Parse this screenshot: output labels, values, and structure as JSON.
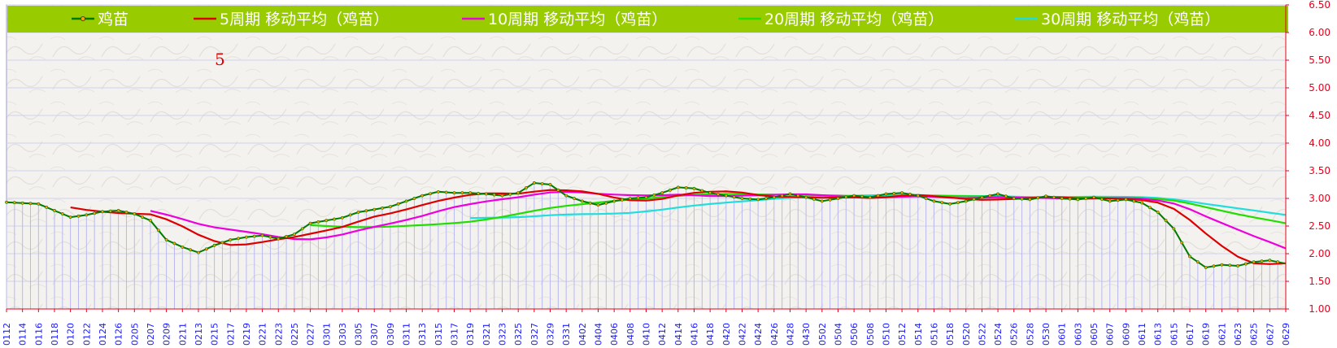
{
  "chart_data": {
    "type": "line",
    "ylim": [
      1.0,
      6.5
    ],
    "yticks": [
      "1.00",
      "1.50",
      "2.00",
      "2.50",
      "3.00",
      "3.50",
      "4.00",
      "4.50",
      "5.00",
      "5.50",
      "6.00",
      "6.50"
    ],
    "annotation": "5",
    "colors": {
      "legend_bg": "#99cc00",
      "price": "#007a00",
      "price_marker": "#ffa000",
      "ma5": "#dd0000",
      "ma10": "#ee00dd",
      "ma20": "#22dd00",
      "ma30": "#22dddd",
      "bars": "#b8b8f0"
    },
    "legend": [
      {
        "key": "price",
        "label": "鸡苗"
      },
      {
        "key": "ma5",
        "label": "5周期 移动平均（鸡苗）"
      },
      {
        "key": "ma10",
        "label": "10周期 移动平均（鸡苗）"
      },
      {
        "key": "ma20",
        "label": "20周期 移动平均（鸡苗）"
      },
      {
        "key": "ma30",
        "label": "30周期 移动平均（鸡苗）"
      }
    ],
    "dates": [
      "0112",
      "0114",
      "0116",
      "0118",
      "0120",
      "0122",
      "0124",
      "0126",
      "0205",
      "0207",
      "0209",
      "0211",
      "0213",
      "0215",
      "0217",
      "0219",
      "0221",
      "0223",
      "0225",
      "0227",
      "0301",
      "0303",
      "0305",
      "0307",
      "0309",
      "0311",
      "0313",
      "0315",
      "0317",
      "0319",
      "0321",
      "0323",
      "0325",
      "0327",
      "0329",
      "0331",
      "0402",
      "0404",
      "0406",
      "0408",
      "0410",
      "0412",
      "0414",
      "0416",
      "0418",
      "0420",
      "0422",
      "0424",
      "0426",
      "0428",
      "0430",
      "0502",
      "0504",
      "0506",
      "0508",
      "0510",
      "0512",
      "0514",
      "0516",
      "0518",
      "0520",
      "0522",
      "0524",
      "0526",
      "0528",
      "0530",
      "0601",
      "0603",
      "0605",
      "0607",
      "0609",
      "0611",
      "0613",
      "0615",
      "0617",
      "0619",
      "0621",
      "0623",
      "0625",
      "0627",
      "0629"
    ],
    "anchors": [
      [
        0,
        2.93
      ],
      [
        2,
        2.9
      ],
      [
        3,
        2.78
      ],
      [
        4,
        2.66
      ],
      [
        5,
        2.7
      ],
      [
        6,
        2.76
      ],
      [
        7,
        2.78
      ],
      [
        8,
        2.72
      ],
      [
        9,
        2.6
      ],
      [
        10,
        2.25
      ],
      [
        11,
        2.12
      ],
      [
        12,
        2.02
      ],
      [
        13,
        2.15
      ],
      [
        14,
        2.25
      ],
      [
        15,
        2.3
      ],
      [
        16,
        2.33
      ],
      [
        17,
        2.27
      ],
      [
        18,
        2.35
      ],
      [
        19,
        2.55
      ],
      [
        20,
        2.6
      ],
      [
        21,
        2.65
      ],
      [
        22,
        2.75
      ],
      [
        23,
        2.8
      ],
      [
        24,
        2.85
      ],
      [
        25,
        2.95
      ],
      [
        26,
        3.05
      ],
      [
        27,
        3.12
      ],
      [
        28,
        3.1
      ],
      [
        29,
        3.1
      ],
      [
        30,
        3.08
      ],
      [
        31,
        3.05
      ],
      [
        32,
        3.1
      ],
      [
        33,
        3.28
      ],
      [
        34,
        3.25
      ],
      [
        35,
        3.05
      ],
      [
        36,
        2.95
      ],
      [
        37,
        2.88
      ],
      [
        38,
        2.95
      ],
      [
        39,
        3.0
      ],
      [
        40,
        3.02
      ],
      [
        41,
        3.1
      ],
      [
        42,
        3.2
      ],
      [
        43,
        3.18
      ],
      [
        44,
        3.1
      ],
      [
        45,
        3.05
      ],
      [
        46,
        3.0
      ],
      [
        47,
        2.98
      ],
      [
        48,
        3.02
      ],
      [
        49,
        3.08
      ],
      [
        50,
        3.02
      ],
      [
        51,
        2.95
      ],
      [
        52,
        3.0
      ],
      [
        53,
        3.05
      ],
      [
        54,
        3.02
      ],
      [
        55,
        3.08
      ],
      [
        56,
        3.1
      ],
      [
        57,
        3.05
      ],
      [
        58,
        2.95
      ],
      [
        59,
        2.9
      ],
      [
        60,
        2.95
      ],
      [
        61,
        3.02
      ],
      [
        62,
        3.08
      ],
      [
        63,
        3.0
      ],
      [
        64,
        2.98
      ],
      [
        65,
        3.04
      ],
      [
        66,
        3.0
      ],
      [
        67,
        2.98
      ],
      [
        68,
        3.02
      ],
      [
        69,
        2.95
      ],
      [
        70,
        2.98
      ],
      [
        71,
        2.92
      ],
      [
        72,
        2.75
      ],
      [
        73,
        2.45
      ],
      [
        74,
        1.95
      ],
      [
        75,
        1.75
      ],
      [
        76,
        1.8
      ],
      [
        77,
        1.78
      ],
      [
        78,
        1.85
      ],
      [
        79,
        1.88
      ],
      [
        80,
        1.82
      ]
    ],
    "series": [
      {
        "key": "price",
        "name": "鸡苗"
      },
      {
        "key": "ma5",
        "name": "5周期 移动平均（鸡苗）",
        "window": 5
      },
      {
        "key": "ma10",
        "name": "10周期 移动平均（鸡苗）",
        "window": 10
      },
      {
        "key": "ma20",
        "name": "20周期 移动平均（鸡苗）",
        "window": 20
      },
      {
        "key": "ma30",
        "name": "30周期 移动平均（鸡苗）",
        "window": 30
      }
    ]
  }
}
